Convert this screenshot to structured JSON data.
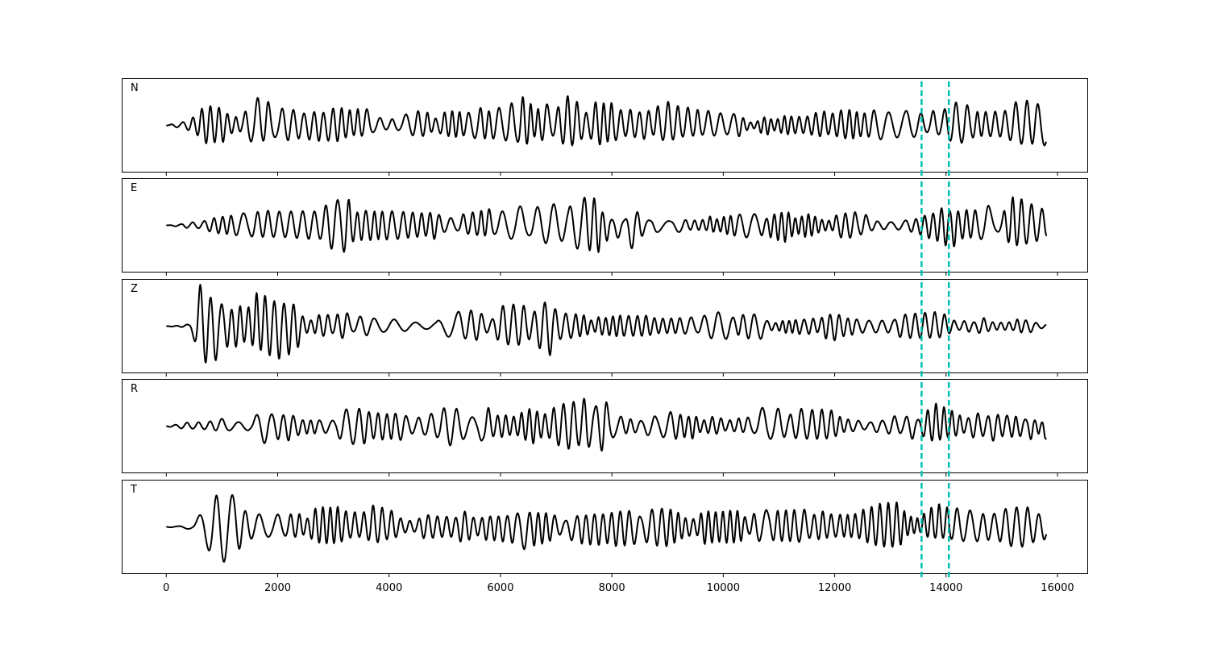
{
  "chart_data": {
    "type": "line",
    "xlim": [
      -800,
      16550
    ],
    "x_ticks": [
      "0",
      "2000",
      "4000",
      "6000",
      "8000",
      "10000",
      "12000",
      "14000",
      "16000"
    ],
    "x_tick_values": [
      0,
      2000,
      4000,
      6000,
      8000,
      10000,
      12000,
      14000,
      16000
    ],
    "grid": false,
    "trace_color": "#000000",
    "marker_color": "#00c0b0",
    "markers": [
      13560,
      14050
    ],
    "series": [
      {
        "name": "N",
        "ylim": [
          -1.15,
          1.15
        ],
        "knots": [
          [
            0,
            0,
            0.03,
            0.4
          ],
          [
            500,
            0.4,
            0.3,
            0.5
          ],
          [
            700,
            0.95,
            0.85,
            0.22
          ],
          [
            1000,
            0.8,
            0.75,
            0.3
          ],
          [
            1700,
            0.8,
            0.45,
            0.3
          ],
          [
            2300,
            0.55,
            0.55,
            0.4
          ],
          [
            2700,
            0.85,
            1.0,
            0.35
          ],
          [
            3300,
            0.55,
            0.35,
            0.4
          ],
          [
            4000,
            0.3,
            0.2,
            0.45
          ],
          [
            5000,
            0.45,
            0.35,
            0.5
          ],
          [
            6000,
            0.55,
            0.45,
            0.5
          ],
          [
            6500,
            0.9,
            0.55,
            0.5
          ],
          [
            7600,
            0.8,
            0.6,
            0.5
          ],
          [
            8500,
            0.6,
            0.45,
            0.5
          ],
          [
            9300,
            0.75,
            0.45,
            0.5
          ],
          [
            10500,
            0.25,
            0.3,
            0.55
          ],
          [
            12000,
            0.45,
            0.35,
            0.6
          ],
          [
            13000,
            0.5,
            0.5,
            0.6
          ],
          [
            13800,
            0.6,
            0.4,
            0.6
          ],
          [
            14600,
            0.55,
            0.45,
            0.55
          ],
          [
            15500,
            0.6,
            0.45,
            0.6
          ],
          [
            15800,
            0.6,
            0.55,
            0.6
          ]
        ]
      },
      {
        "name": "E",
        "ylim": [
          -1.1,
          1.1
        ],
        "knots": [
          [
            0,
            0,
            0.03,
            0.4
          ],
          [
            500,
            0.1,
            0.1,
            0.45
          ],
          [
            900,
            0.3,
            0.3,
            0.45
          ],
          [
            1900,
            0.55,
            0.45,
            0.4
          ],
          [
            2900,
            0.6,
            0.6,
            0.4
          ],
          [
            3500,
            0.7,
            0.75,
            0.4
          ],
          [
            4500,
            0.6,
            0.55,
            0.45
          ],
          [
            5500,
            0.45,
            0.3,
            0.5
          ],
          [
            6500,
            0.45,
            0.35,
            0.55
          ],
          [
            7200,
            0.65,
            0.55,
            0.5
          ],
          [
            7700,
            0.7,
            0.65,
            0.5
          ],
          [
            8000,
            0.4,
            1.05,
            0.5
          ],
          [
            8600,
            0.3,
            0.3,
            0.55
          ],
          [
            9800,
            0.35,
            0.3,
            0.6
          ],
          [
            11000,
            0.35,
            0.45,
            0.6
          ],
          [
            12500,
            0.35,
            0.3,
            0.55
          ],
          [
            13000,
            0.15,
            0.15,
            0.55
          ],
          [
            13900,
            0.75,
            0.9,
            0.55
          ],
          [
            14500,
            0.4,
            0.3,
            0.55
          ],
          [
            15200,
            0.85,
            0.6,
            0.5
          ],
          [
            15800,
            0.35,
            0.35,
            0.5
          ]
        ]
      },
      {
        "name": "Z",
        "ylim": [
          -1.1,
          1.1
        ],
        "knots": [
          [
            0,
            0,
            0.03,
            0.4
          ],
          [
            430,
            0.05,
            0.05,
            0.25
          ],
          [
            600,
            1.0,
            0.7,
            0.22
          ],
          [
            730,
            0.7,
            0.9,
            0.2
          ],
          [
            1200,
            0.55,
            0.7,
            0.3
          ],
          [
            1600,
            0.9,
            0.55,
            0.3
          ],
          [
            2000,
            0.55,
            0.8,
            0.35
          ],
          [
            2700,
            0.5,
            0.4,
            0.4
          ],
          [
            3500,
            0.35,
            0.3,
            0.45
          ],
          [
            5000,
            0.3,
            0.25,
            0.5
          ],
          [
            6400,
            0.65,
            0.55,
            0.5
          ],
          [
            6900,
            0.6,
            0.75,
            0.5
          ],
          [
            7300,
            0.45,
            0.4,
            0.55
          ],
          [
            8000,
            0.3,
            0.3,
            0.6
          ],
          [
            9500,
            0.4,
            0.35,
            0.6
          ],
          [
            11000,
            0.25,
            0.3,
            0.6
          ],
          [
            13000,
            0.35,
            0.4,
            0.6
          ],
          [
            13900,
            0.45,
            0.35,
            0.6
          ],
          [
            14200,
            0.1,
            0.1,
            0.6
          ],
          [
            15200,
            0.35,
            0.35,
            0.6
          ],
          [
            15800,
            0.15,
            0.15,
            0.6
          ]
        ]
      },
      {
        "name": "R",
        "ylim": [
          -1.1,
          1.1
        ],
        "knots": [
          [
            0,
            0,
            0.03,
            0.4
          ],
          [
            600,
            0.15,
            0.1,
            0.45
          ],
          [
            1500,
            0.3,
            0.3,
            0.45
          ],
          [
            2600,
            0.6,
            0.8,
            0.4
          ],
          [
            3200,
            0.5,
            0.5,
            0.45
          ],
          [
            4500,
            0.45,
            0.5,
            0.45
          ],
          [
            5500,
            0.55,
            0.6,
            0.5
          ],
          [
            6500,
            0.55,
            0.5,
            0.5
          ],
          [
            7200,
            0.7,
            0.65,
            0.5
          ],
          [
            7950,
            1.05,
            0.85,
            0.45
          ],
          [
            8600,
            0.4,
            0.5,
            0.5
          ],
          [
            10000,
            0.4,
            0.3,
            0.55
          ],
          [
            11000,
            0.55,
            0.4,
            0.55
          ],
          [
            12500,
            0.3,
            0.25,
            0.6
          ],
          [
            13500,
            0.35,
            0.4,
            0.6
          ],
          [
            13900,
            0.95,
            0.6,
            0.55
          ],
          [
            14600,
            0.3,
            0.3,
            0.55
          ],
          [
            15200,
            0.55,
            0.55,
            0.55
          ],
          [
            15800,
            0.3,
            0.7,
            0.55
          ]
        ]
      },
      {
        "name": "T",
        "ylim": [
          -1.1,
          1.1
        ],
        "knots": [
          [
            0,
            0,
            0.03,
            0.4
          ],
          [
            500,
            0.1,
            0.1,
            0.3
          ],
          [
            700,
            0.9,
            1.0,
            0.22
          ],
          [
            1200,
            0.8,
            0.8,
            0.25
          ],
          [
            2000,
            0.8,
            0.6,
            0.3
          ],
          [
            3000,
            0.65,
            0.55,
            0.35
          ],
          [
            3500,
            0.75,
            0.5,
            0.4
          ],
          [
            4500,
            0.45,
            0.4,
            0.45
          ],
          [
            5500,
            0.45,
            0.5,
            0.5
          ],
          [
            6400,
            0.5,
            0.75,
            0.5
          ],
          [
            7000,
            0.5,
            0.5,
            0.5
          ],
          [
            7600,
            0.5,
            0.75,
            0.5
          ],
          [
            8500,
            0.4,
            0.4,
            0.55
          ],
          [
            9500,
            0.55,
            0.6,
            0.55
          ],
          [
            10500,
            0.45,
            0.4,
            0.55
          ],
          [
            12000,
            0.5,
            0.4,
            0.6
          ],
          [
            13000,
            0.6,
            0.5,
            0.6
          ],
          [
            13900,
            0.7,
            0.35,
            0.6
          ],
          [
            14500,
            0.5,
            0.5,
            0.55
          ],
          [
            15600,
            0.6,
            0.6,
            0.55
          ],
          [
            15800,
            0.4,
            0.4,
            0.55
          ]
        ]
      }
    ]
  }
}
